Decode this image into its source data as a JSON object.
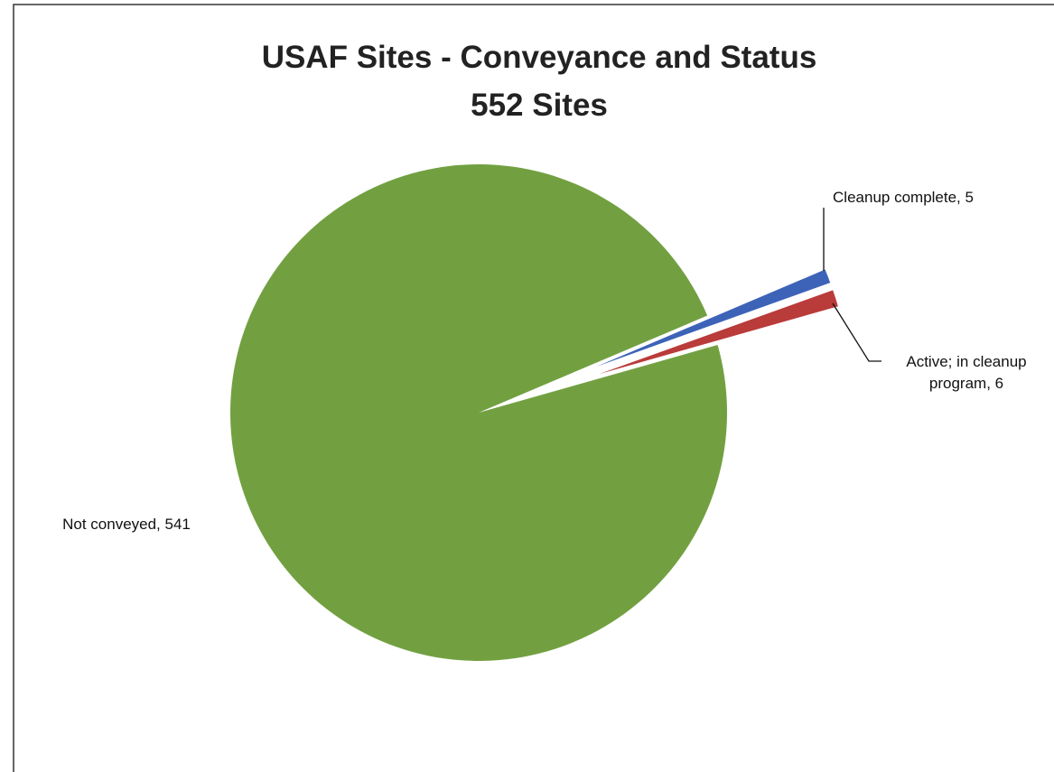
{
  "chart_data": {
    "type": "pie",
    "title": "USAF Sites - Conveyance and Status",
    "subtitle": "552 Sites",
    "values": [
      5,
      6,
      541
    ],
    "value_labels": [
      "Cleanup complete, 5",
      "Active; in cleanup program, 6",
      "Not conveyed, 541"
    ],
    "colors": [
      "#3d63b8",
      "#b93b3a",
      "#72a041"
    ]
  }
}
